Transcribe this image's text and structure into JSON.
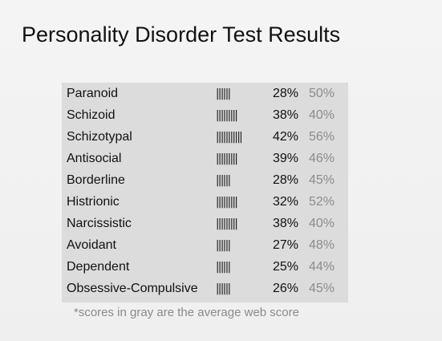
{
  "title": "Personality Disorder Test Results",
  "rows": [
    {
      "name": "Paranoid",
      "bars": "||||||",
      "score": "28%",
      "average": "50%"
    },
    {
      "name": "Schizoid",
      "bars": "|||||||||",
      "score": "38%",
      "average": "40%"
    },
    {
      "name": "Schizotypal",
      "bars": "|||||||||||",
      "score": "42%",
      "average": "56%"
    },
    {
      "name": "Antisocial",
      "bars": "|||||||||",
      "score": "39%",
      "average": "46%"
    },
    {
      "name": "Borderline",
      "bars": "||||||",
      "score": "28%",
      "average": "45%"
    },
    {
      "name": "Histrionic",
      "bars": "|||||||||",
      "score": "32%",
      "average": "52%"
    },
    {
      "name": "Narcissistic",
      "bars": "|||||||||",
      "score": "38%",
      "average": "40%"
    },
    {
      "name": "Avoidant",
      "bars": "||||||",
      "score": "27%",
      "average": "48%"
    },
    {
      "name": "Dependent",
      "bars": "||||||",
      "score": "25%",
      "average": "44%"
    },
    {
      "name": "Obsessive-Compulsive",
      "bars": "||||||",
      "score": "26%",
      "average": "45%"
    }
  ],
  "footnote": "*scores in gray are the average web score",
  "colors": {
    "background": "#f2f2f2",
    "table_background": "#dcdcdc",
    "average_text": "#8c8c8c"
  }
}
